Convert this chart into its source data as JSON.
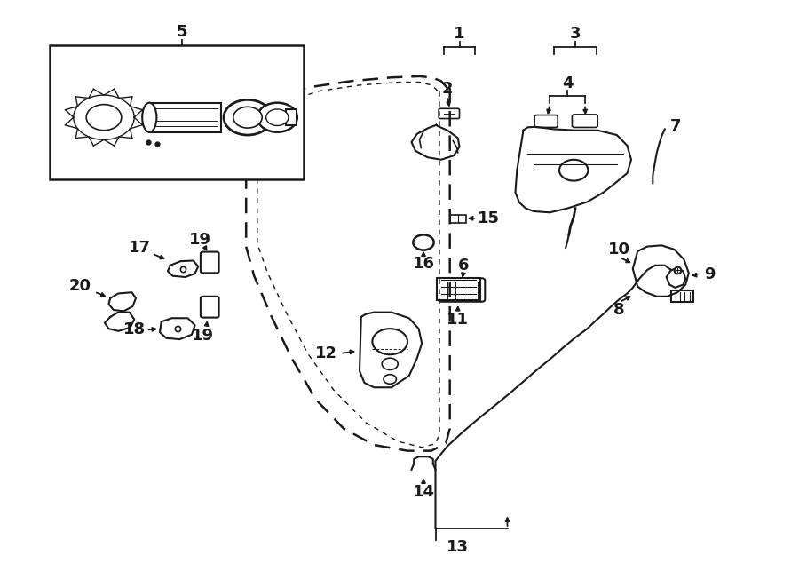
{
  "bg": "#ffffff",
  "lc": "#1a1a1a",
  "fig_w": 9.0,
  "fig_h": 6.61,
  "dpi": 100
}
